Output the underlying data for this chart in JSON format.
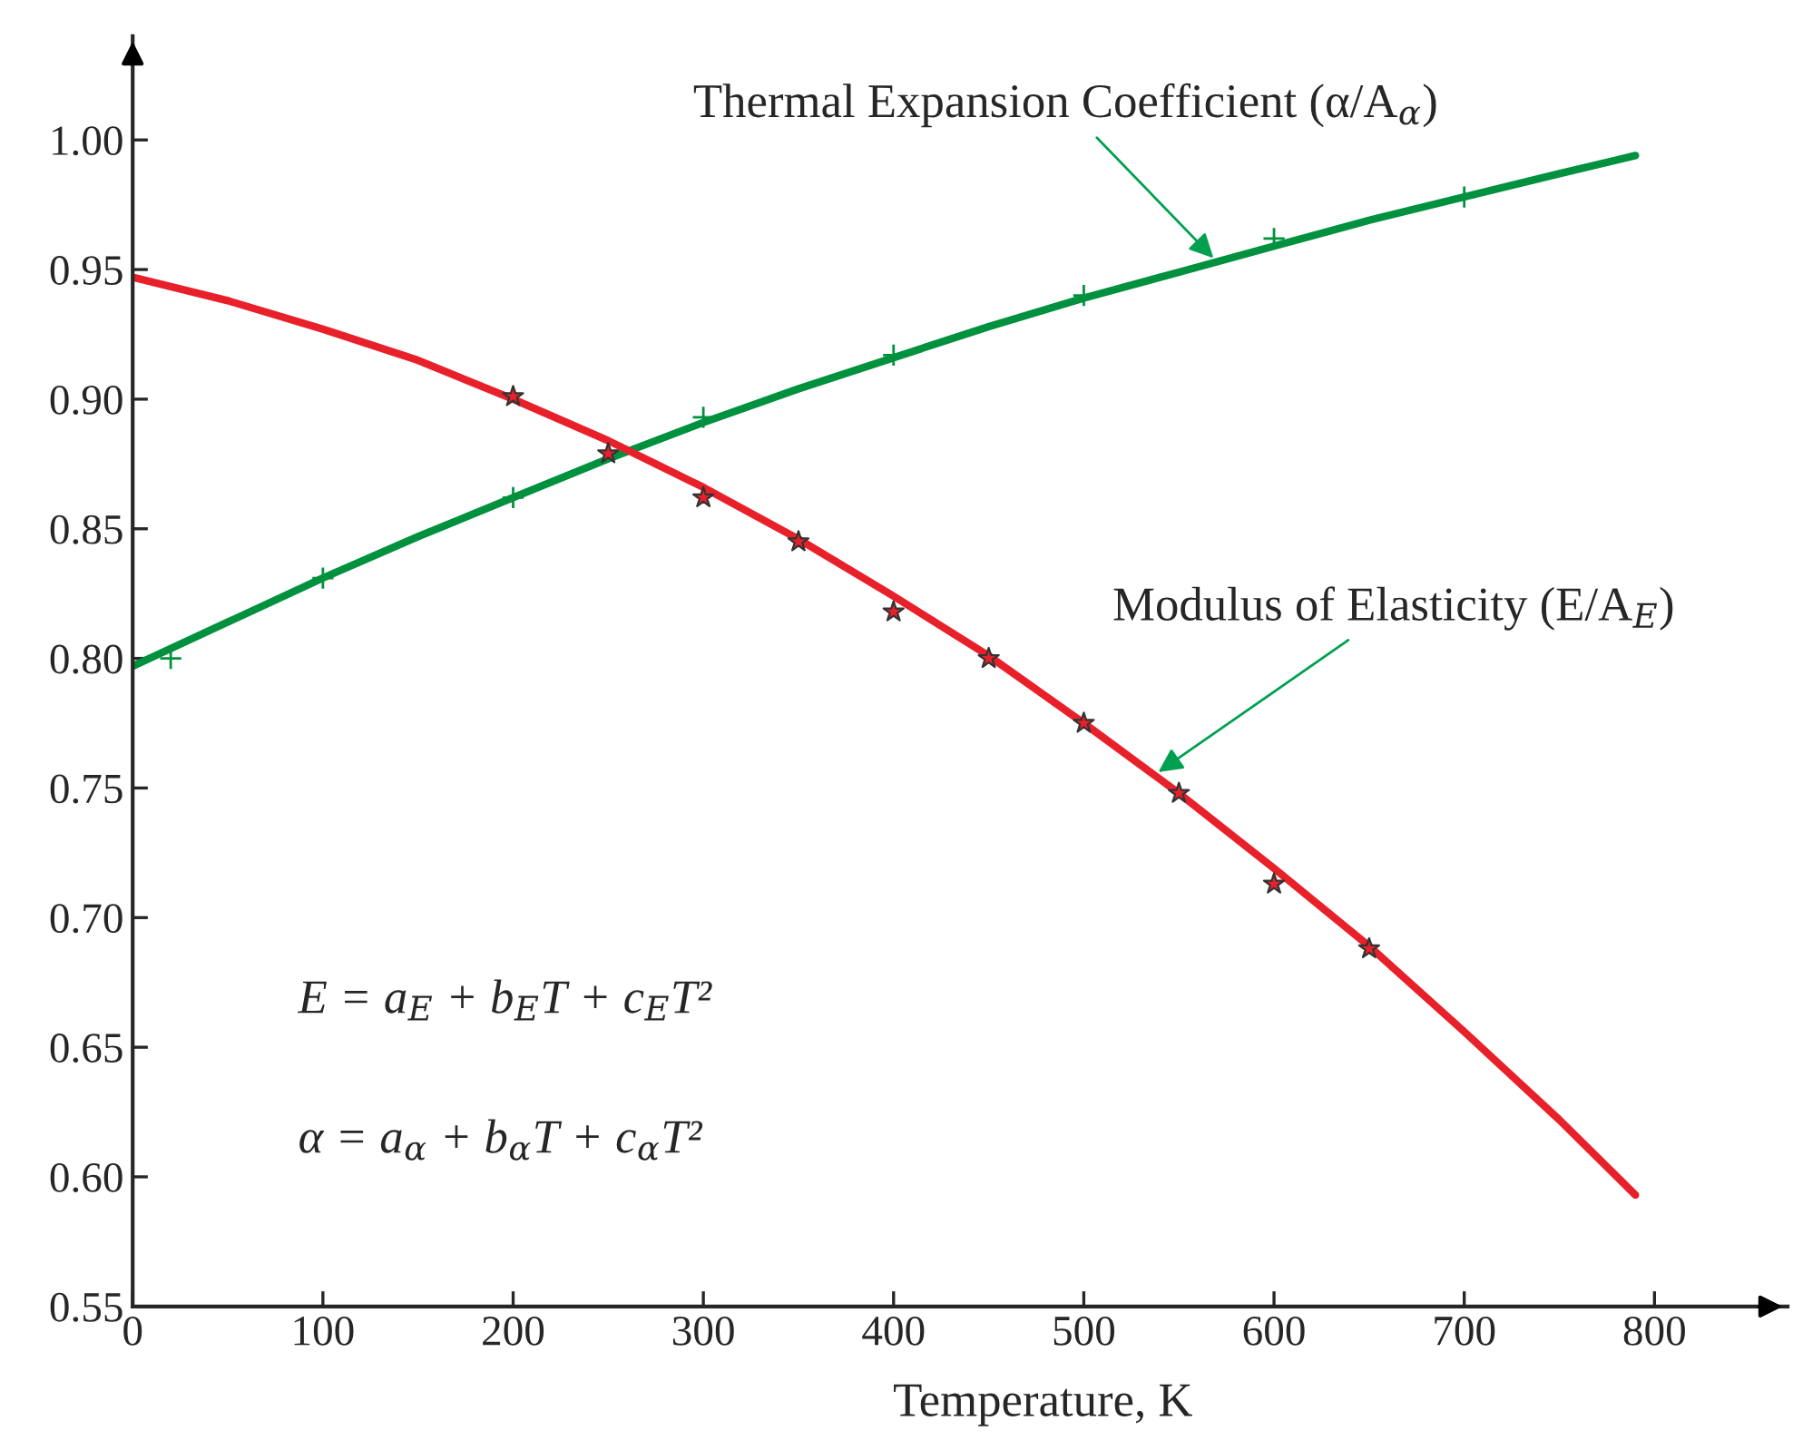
{
  "chart_data": {
    "type": "line",
    "xlabel": "Temperature, K",
    "xlim": [
      0,
      870
    ],
    "ylim": [
      0.55,
      1.04
    ],
    "xticks": [
      0,
      100,
      200,
      300,
      400,
      500,
      600,
      700,
      800
    ],
    "yticks": [
      {
        "value": 0.55,
        "label": "0.55"
      },
      {
        "value": 0.6,
        "label": "0.60"
      },
      {
        "value": 0.65,
        "label": "0.65"
      },
      {
        "value": 0.7,
        "label": "0.70"
      },
      {
        "value": 0.75,
        "label": "0.75"
      },
      {
        "value": 0.8,
        "label": "0.80"
      },
      {
        "value": 0.85,
        "label": "0.85"
      },
      {
        "value": 0.9,
        "label": "0.90"
      },
      {
        "value": 0.95,
        "label": "0.95"
      },
      {
        "value": 1.0,
        "label": "1.00"
      }
    ],
    "grid": false,
    "legend": false,
    "series": [
      {
        "color": "#00913f",
        "x": [
          0,
          50,
          100,
          150,
          200,
          250,
          300,
          350,
          400,
          450,
          500,
          550,
          600,
          650,
          700,
          750,
          790
        ],
        "values": [
          0.797,
          0.814,
          0.831,
          0.847,
          0.862,
          0.877,
          0.891,
          0.904,
          0.916,
          0.928,
          0.939,
          0.949,
          0.959,
          0.969,
          0.978,
          0.987,
          0.994
        ],
        "marker": "none"
      },
      {
        "type": "scatter",
        "color": "#00913f",
        "x": [
          20,
          100,
          200,
          300,
          400,
          500,
          600,
          700
        ],
        "values": [
          0.8,
          0.831,
          0.862,
          0.893,
          0.917,
          0.94,
          0.962,
          0.978
        ],
        "marker": "cross"
      },
      {
        "color": "#e8202a",
        "x": [
          0,
          50,
          100,
          150,
          200,
          250,
          300,
          350,
          400,
          450,
          500,
          550,
          600,
          650,
          700,
          750,
          790
        ],
        "values": [
          0.947,
          0.938,
          0.927,
          0.915,
          0.9,
          0.884,
          0.866,
          0.846,
          0.824,
          0.801,
          0.775,
          0.748,
          0.719,
          0.689,
          0.656,
          0.622,
          0.593
        ],
        "marker": "none"
      },
      {
        "type": "scatter",
        "color": "#e8202a",
        "x": [
          200,
          250,
          300,
          350,
          400,
          450,
          500,
          550,
          600,
          650
        ],
        "values": [
          0.901,
          0.879,
          0.862,
          0.845,
          0.818,
          0.8,
          0.775,
          0.748,
          0.713,
          0.688
        ],
        "marker": "star"
      }
    ],
    "annotations": [
      {
        "text": "Thermal Expansion Coefficient (α/A$_{α}$)",
        "x": 570,
        "y": 0.953
      },
      {
        "text": "Modulus of Elasticity (E/A$_{E}$)",
        "x": 537,
        "y": 0.755
      },
      "E = a$_{E}$ + b$_{E}$T + c$_{E}$T²",
      "α = a$_{α}$ + b$_{α}$T + c$_{α}$T²"
    ]
  }
}
